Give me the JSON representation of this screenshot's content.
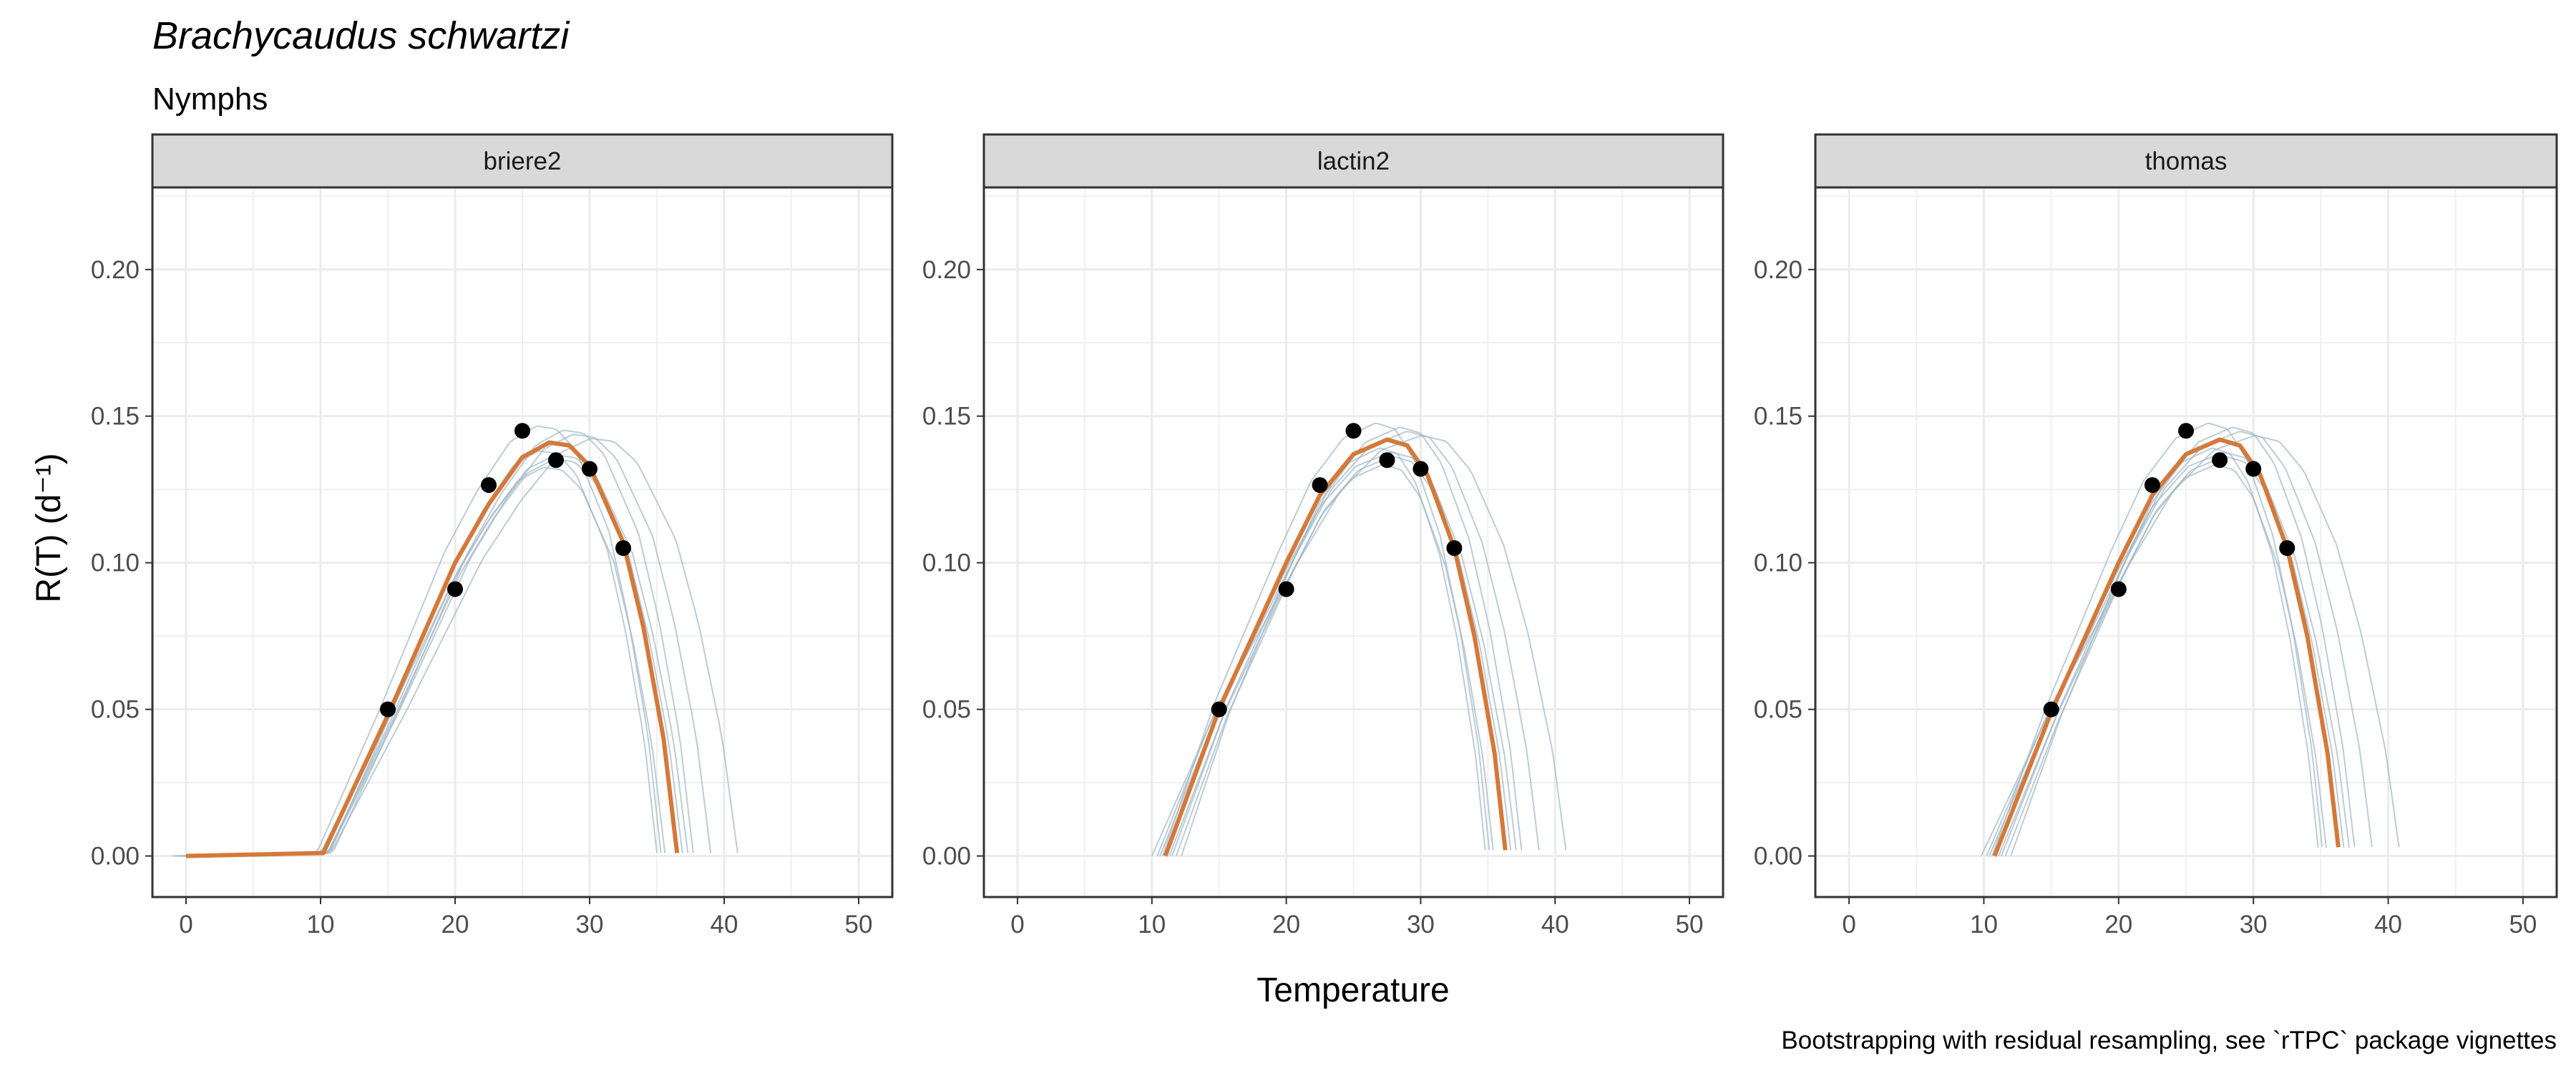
{
  "chart_data": {
    "type": "line",
    "title": "Brachycaudus schwartzi",
    "subtitle": "Nymphs",
    "xlabel": "Temperature",
    "ylabel": "R(T) (d⁻¹)",
    "caption": "Bootstrapping with residual resampling, see `rTPC` package vignettes",
    "xlim": [
      -2.5,
      52.5
    ],
    "ylim": [
      -0.014,
      0.228
    ],
    "x_ticks": [
      "0",
      "10",
      "20",
      "30",
      "40",
      "50"
    ],
    "y_ticks": [
      "0.00",
      "0.05",
      "0.10",
      "0.15",
      "0.20"
    ],
    "grid": true,
    "colors": {
      "fit": "#d4793a",
      "bootstrap": "#9fb6c4",
      "points": "#000000",
      "strip": "#d9d9d9"
    },
    "observed": {
      "x": [
        15,
        20,
        22.5,
        25,
        27.5,
        30,
        32.5
      ],
      "y": [
        0.05,
        0.091,
        0.1265,
        0.145,
        0.135,
        0.132,
        0.105
      ]
    },
    "panels": [
      {
        "label": "briere2",
        "fit": {
          "x": [
            0,
            10.2,
            15,
            20,
            22.5,
            25,
            27,
            28.5,
            30,
            32.5,
            34,
            35.5,
            36.5
          ],
          "y": [
            0,
            0.001,
            0.048,
            0.1,
            0.12,
            0.136,
            0.141,
            0.14,
            0.133,
            0.107,
            0.078,
            0.04,
            0.001
          ]
        }
      },
      {
        "label": "lactin2",
        "fit": {
          "x": [
            11,
            15,
            20,
            22.5,
            25,
            27.5,
            29,
            30.5,
            32.5,
            34,
            35.5,
            36.3
          ],
          "y": [
            0,
            0.05,
            0.1,
            0.123,
            0.137,
            0.142,
            0.14,
            0.13,
            0.105,
            0.075,
            0.035,
            0.002
          ]
        }
      },
      {
        "label": "thomas",
        "fit": {
          "x": [
            10.8,
            15,
            20,
            22.5,
            25,
            27.5,
            29,
            30.5,
            32.5,
            34,
            35.5,
            36.3
          ],
          "y": [
            0,
            0.049,
            0.1,
            0.123,
            0.137,
            0.142,
            0.14,
            0.13,
            0.105,
            0.075,
            0.035,
            0.003
          ]
        }
      }
    ]
  }
}
